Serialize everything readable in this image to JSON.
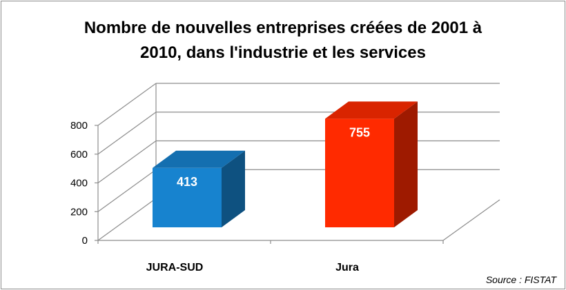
{
  "chart_data": {
    "type": "bar",
    "title_lines": [
      "Nombre de nouvelles entreprises créées de 2001 à",
      "2010, dans l'industrie et les services"
    ],
    "categories": [
      "JURA-SUD",
      "Jura"
    ],
    "values": [
      413,
      755
    ],
    "data_labels": [
      "413",
      "755"
    ],
    "colors": [
      "#1783cf",
      "#ff2a00"
    ],
    "ylim": [
      0,
      800
    ],
    "yticks": [
      "0",
      "200",
      "400",
      "600",
      "800"
    ],
    "grid": true,
    "legend": "none",
    "source": "Source : FISTAT"
  }
}
